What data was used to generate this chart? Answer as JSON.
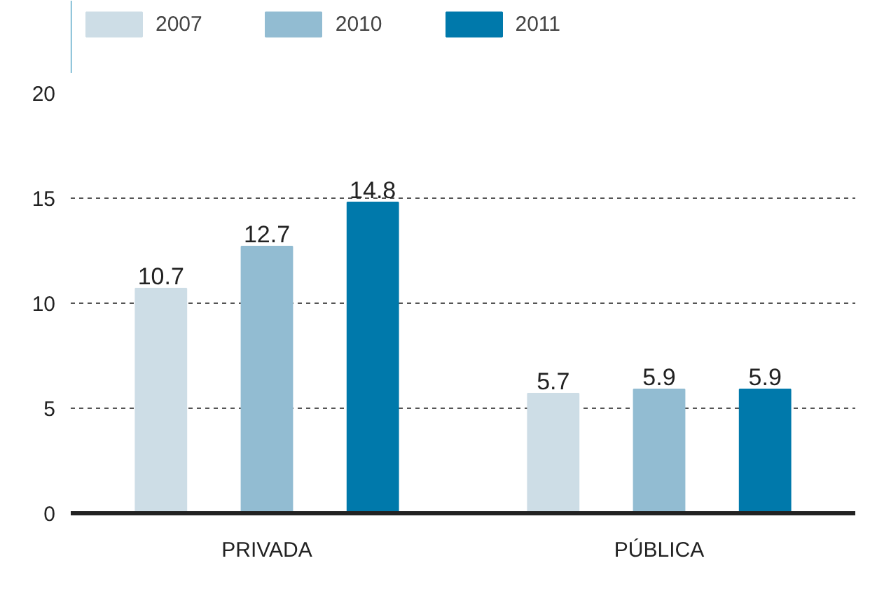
{
  "chart_data": {
    "type": "bar",
    "categories": [
      "PRIVADA",
      "PÚBLICA"
    ],
    "series": [
      {
        "name": "2007",
        "color": "#cddde6",
        "values": [
          10.7,
          5.7
        ]
      },
      {
        "name": "2010",
        "color": "#92bcd2",
        "values": [
          12.7,
          5.9
        ]
      },
      {
        "name": "2011",
        "color": "#0079ab",
        "values": [
          14.8,
          5.9
        ]
      }
    ],
    "ylim": [
      0,
      20
    ],
    "yticks": [
      0,
      5,
      10,
      15,
      20
    ],
    "grid": "y",
    "legend": "top left",
    "data_labels": true
  }
}
